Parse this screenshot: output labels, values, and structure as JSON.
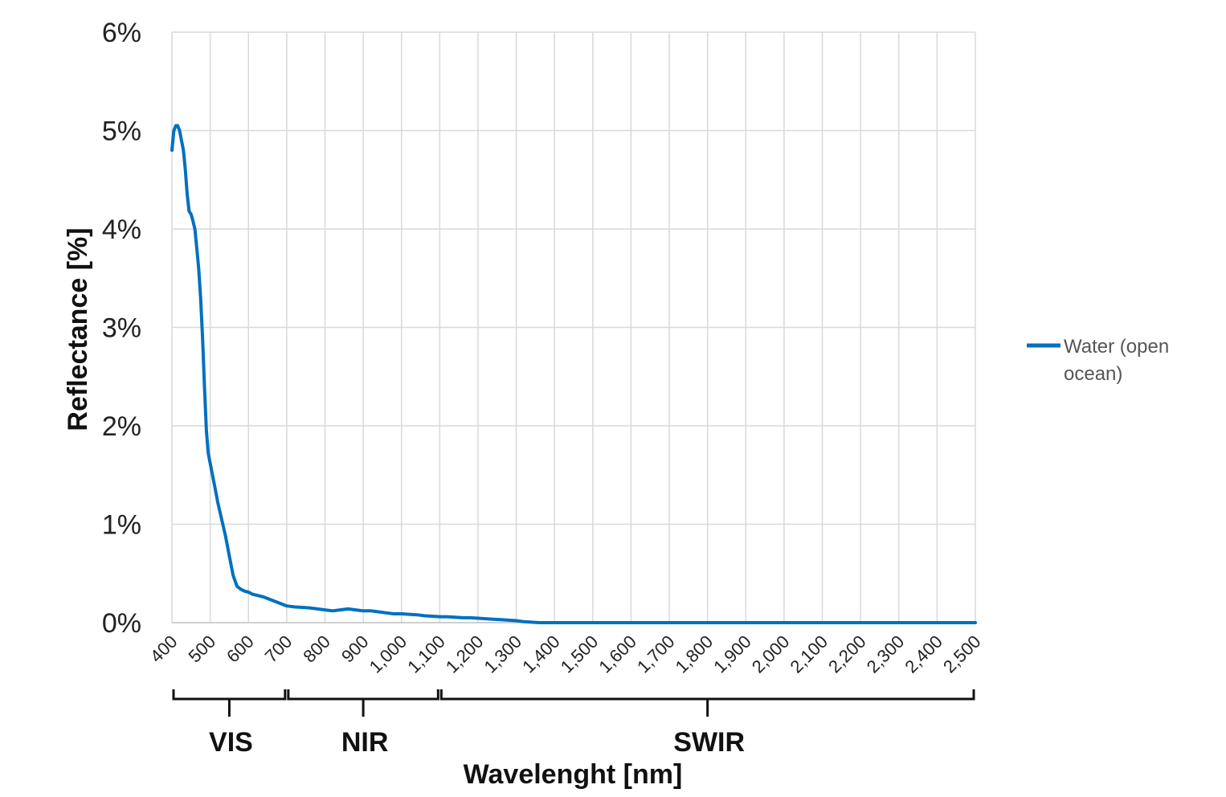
{
  "chart_data": {
    "type": "line",
    "ylabel": "Reflectance [%]",
    "xlabel": "Wavelenght [nm]",
    "xlim": [
      400,
      2500
    ],
    "ylim": [
      0,
      6
    ],
    "grid": true,
    "legend_position": "right",
    "x_ticks": [
      "400",
      "500",
      "600",
      "700",
      "800",
      "900",
      "1,000",
      "1,100",
      "1,200",
      "1,300",
      "1,400",
      "1,500",
      "1,600",
      "1,700",
      "1,800",
      "1,900",
      "2,000",
      "2,100",
      "2,200",
      "2,300",
      "2,400",
      "2,500"
    ],
    "y_ticks": [
      "0%",
      "1%",
      "2%",
      "3%",
      "4%",
      "5%",
      "6%"
    ],
    "regions": [
      {
        "label": "VIS",
        "start": 400,
        "end": 700
      },
      {
        "label": "NIR",
        "start": 700,
        "end": 1100
      },
      {
        "label": "SWIR",
        "start": 1100,
        "end": 2500
      }
    ],
    "series": [
      {
        "name": "Water (open ocean)",
        "color": "#0070c0",
        "x": [
          400,
          405,
          410,
          415,
          420,
          425,
          430,
          435,
          440,
          445,
          450,
          455,
          460,
          465,
          470,
          475,
          480,
          485,
          490,
          495,
          500,
          505,
          510,
          515,
          520,
          530,
          540,
          550,
          560,
          570,
          580,
          590,
          600,
          610,
          620,
          640,
          660,
          680,
          700,
          720,
          740,
          760,
          780,
          800,
          820,
          840,
          860,
          880,
          900,
          920,
          940,
          960,
          980,
          1000,
          1020,
          1040,
          1060,
          1080,
          1100,
          1120,
          1140,
          1160,
          1180,
          1200,
          1220,
          1240,
          1260,
          1280,
          1300,
          1320,
          1340,
          1360,
          1400,
          1500,
          1600,
          1700,
          1800,
          1900,
          2000,
          2100,
          2200,
          2300,
          2400,
          2500
        ],
        "y": [
          4.8,
          5.0,
          5.05,
          5.05,
          5.0,
          4.9,
          4.8,
          4.6,
          4.35,
          4.18,
          4.15,
          4.08,
          4.0,
          3.8,
          3.6,
          3.3,
          2.9,
          2.4,
          1.95,
          1.72,
          1.62,
          1.52,
          1.42,
          1.32,
          1.22,
          1.05,
          0.88,
          0.68,
          0.48,
          0.37,
          0.34,
          0.32,
          0.31,
          0.29,
          0.28,
          0.26,
          0.23,
          0.2,
          0.17,
          0.16,
          0.155,
          0.15,
          0.14,
          0.13,
          0.12,
          0.13,
          0.14,
          0.13,
          0.12,
          0.12,
          0.11,
          0.1,
          0.09,
          0.09,
          0.085,
          0.08,
          0.07,
          0.065,
          0.06,
          0.06,
          0.055,
          0.05,
          0.05,
          0.045,
          0.04,
          0.035,
          0.03,
          0.025,
          0.02,
          0.01,
          0.005,
          0.0,
          0.0,
          0.0,
          0.0,
          0.0,
          0.0,
          0.0,
          0.0,
          0.0,
          0.0,
          0.0,
          0.0,
          0.0
        ]
      }
    ]
  },
  "legend": {
    "line1": "Water (open",
    "line2": "ocean)"
  }
}
